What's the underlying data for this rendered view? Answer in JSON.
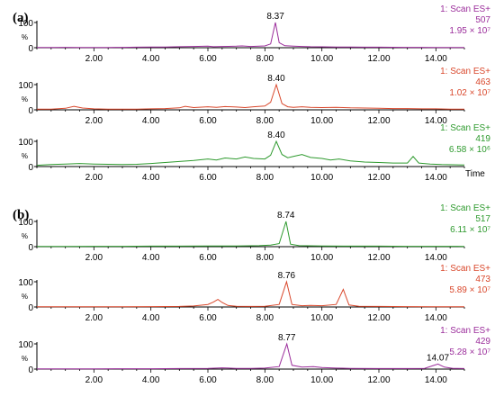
{
  "chart_data": [
    {
      "type": "line",
      "panel": "(a)",
      "xlim": [
        0,
        15
      ],
      "x_ticks": [
        "2.00",
        "4.00",
        "6.00",
        "8.00",
        "10.00",
        "12.00",
        "14.00"
      ],
      "x_label": "Time",
      "traces": [
        {
          "scan": "1: Scan ES+",
          "mass": "507",
          "intensity": "1.95 × 10⁷",
          "color": "#9b2d9b",
          "y_top": "100",
          "y_bottom": "0",
          "y_unit": "%",
          "peak_label": "8.37",
          "peak_rt": 8.37,
          "points": [
            [
              0,
              1
            ],
            [
              0.5,
              1
            ],
            [
              1,
              1.5
            ],
            [
              1.5,
              1
            ],
            [
              2,
              1.2
            ],
            [
              2.5,
              1
            ],
            [
              3,
              1.5
            ],
            [
              3.5,
              2
            ],
            [
              4,
              2.5
            ],
            [
              4.5,
              3
            ],
            [
              5,
              4
            ],
            [
              5.5,
              5
            ],
            [
              6,
              6
            ],
            [
              6.2,
              4
            ],
            [
              6.5,
              5
            ],
            [
              7,
              6
            ],
            [
              7.2,
              7
            ],
            [
              7.5,
              5
            ],
            [
              7.8,
              6
            ],
            [
              8.0,
              7
            ],
            [
              8.2,
              15
            ],
            [
              8.37,
              100
            ],
            [
              8.5,
              20
            ],
            [
              8.7,
              8
            ],
            [
              9,
              6
            ],
            [
              9.3,
              5
            ],
            [
              9.6,
              4
            ],
            [
              10,
              3.5
            ],
            [
              10.5,
              3
            ],
            [
              11,
              2.5
            ],
            [
              11.5,
              2
            ],
            [
              12,
              2
            ],
            [
              12.5,
              1.8
            ],
            [
              13,
              1.5
            ],
            [
              13.5,
              1.4
            ],
            [
              14,
              1.2
            ],
            [
              14.5,
              1
            ],
            [
              15,
              1
            ]
          ]
        },
        {
          "scan": "1: Scan ES+",
          "mass": "463",
          "intensity": "1.02 × 10⁷",
          "color": "#d9472b",
          "y_top": "100",
          "y_bottom": "0",
          "y_unit": "%",
          "peak_label": "8.40",
          "peak_rt": 8.4,
          "points": [
            [
              0,
              3
            ],
            [
              0.5,
              3
            ],
            [
              1,
              6
            ],
            [
              1.3,
              14
            ],
            [
              1.6,
              7
            ],
            [
              2,
              4
            ],
            [
              2.5,
              3
            ],
            [
              3,
              3
            ],
            [
              3.5,
              3
            ],
            [
              4,
              4
            ],
            [
              4.5,
              5
            ],
            [
              5,
              8
            ],
            [
              5.2,
              14
            ],
            [
              5.5,
              9
            ],
            [
              6,
              12
            ],
            [
              6.3,
              10
            ],
            [
              6.6,
              13
            ],
            [
              7,
              11
            ],
            [
              7.3,
              9
            ],
            [
              7.6,
              12
            ],
            [
              8,
              15
            ],
            [
              8.2,
              30
            ],
            [
              8.4,
              100
            ],
            [
              8.6,
              25
            ],
            [
              8.8,
              12
            ],
            [
              9,
              10
            ],
            [
              9.3,
              12
            ],
            [
              9.6,
              10
            ],
            [
              10,
              9
            ],
            [
              10.5,
              10
            ],
            [
              11,
              8
            ],
            [
              11.5,
              7
            ],
            [
              12,
              6
            ],
            [
              12.5,
              5
            ],
            [
              13,
              5
            ],
            [
              13.5,
              4
            ],
            [
              14,
              4
            ],
            [
              14.5,
              3
            ],
            [
              15,
              3
            ]
          ]
        },
        {
          "scan": "1: Scan ES+",
          "mass": "419",
          "intensity": "6.58 × 10⁶",
          "color": "#2e9a2e",
          "y_top": "100",
          "y_bottom": "0",
          "y_unit": "%",
          "peak_label": "8.40",
          "peak_rt": 8.4,
          "points": [
            [
              0,
              5
            ],
            [
              0.5,
              8
            ],
            [
              1,
              10
            ],
            [
              1.5,
              12
            ],
            [
              2,
              10
            ],
            [
              2.5,
              9
            ],
            [
              3,
              8
            ],
            [
              3.5,
              9
            ],
            [
              4,
              12
            ],
            [
              4.5,
              16
            ],
            [
              5,
              20
            ],
            [
              5.5,
              24
            ],
            [
              6,
              30
            ],
            [
              6.3,
              26
            ],
            [
              6.6,
              34
            ],
            [
              7,
              30
            ],
            [
              7.3,
              38
            ],
            [
              7.6,
              32
            ],
            [
              8,
              30
            ],
            [
              8.2,
              45
            ],
            [
              8.4,
              100
            ],
            [
              8.6,
              48
            ],
            [
              8.8,
              35
            ],
            [
              9,
              40
            ],
            [
              9.3,
              48
            ],
            [
              9.6,
              36
            ],
            [
              10,
              32
            ],
            [
              10.3,
              26
            ],
            [
              10.6,
              30
            ],
            [
              11,
              22
            ],
            [
              11.5,
              18
            ],
            [
              12,
              16
            ],
            [
              12.5,
              14
            ],
            [
              13,
              14
            ],
            [
              13.2,
              40
            ],
            [
              13.4,
              14
            ],
            [
              13.8,
              10
            ],
            [
              14.2,
              8
            ],
            [
              14.6,
              7
            ],
            [
              15,
              6
            ]
          ]
        }
      ]
    },
    {
      "type": "line",
      "panel": "(b)",
      "xlim": [
        0,
        15
      ],
      "x_ticks": [
        "2.00",
        "4.00",
        "6.00",
        "8.00",
        "10.00",
        "12.00",
        "14.00"
      ],
      "traces": [
        {
          "scan": "1: Scan ES+",
          "mass": "517",
          "intensity": "6.11 × 10⁷",
          "color": "#2e9a2e",
          "y_top": "100",
          "y_bottom": "0",
          "y_unit": "%",
          "peak_label": "8.74",
          "peak_rt": 8.74,
          "points": [
            [
              0,
              1
            ],
            [
              1,
              1
            ],
            [
              2,
              1.5
            ],
            [
              3,
              1.5
            ],
            [
              4,
              2
            ],
            [
              5,
              2
            ],
            [
              6,
              2.5
            ],
            [
              7,
              3
            ],
            [
              7.8,
              4
            ],
            [
              8.2,
              6
            ],
            [
              8.5,
              12
            ],
            [
              8.74,
              100
            ],
            [
              8.9,
              10
            ],
            [
              9.2,
              4
            ],
            [
              10,
              3
            ],
            [
              11,
              2
            ],
            [
              12,
              2
            ],
            [
              13,
              1.5
            ],
            [
              14,
              1.5
            ],
            [
              15,
              1
            ]
          ]
        },
        {
          "scan": "1: Scan ES+",
          "mass": "473",
          "intensity": "5.89 × 10⁷",
          "color": "#d9472b",
          "y_top": "100",
          "y_bottom": "0",
          "y_unit": "%",
          "peak_label": "8.76",
          "peak_rt": 8.76,
          "points": [
            [
              0,
              1
            ],
            [
              1,
              1
            ],
            [
              2,
              1
            ],
            [
              3,
              1
            ],
            [
              4,
              1.5
            ],
            [
              5,
              2
            ],
            [
              5.5,
              4
            ],
            [
              6,
              10
            ],
            [
              6.2,
              20
            ],
            [
              6.35,
              30
            ],
            [
              6.5,
              18
            ],
            [
              6.7,
              6
            ],
            [
              7,
              3
            ],
            [
              7.5,
              2
            ],
            [
              8,
              3
            ],
            [
              8.5,
              10
            ],
            [
              8.76,
              100
            ],
            [
              8.95,
              10
            ],
            [
              9.3,
              5
            ],
            [
              9.6,
              6
            ],
            [
              10,
              5
            ],
            [
              10.5,
              10
            ],
            [
              10.75,
              70
            ],
            [
              10.95,
              8
            ],
            [
              11.3,
              3
            ],
            [
              12,
              2
            ],
            [
              13,
              1.5
            ],
            [
              14,
              1
            ],
            [
              15,
              1
            ]
          ]
        },
        {
          "scan": "1: Scan ES+",
          "mass": "429",
          "intensity": "5.28 × 10⁷",
          "color": "#9b2d9b",
          "y_top": "100",
          "y_bottom": "0",
          "y_unit": "%",
          "peak_label": "8.77",
          "peak_rt": 8.77,
          "second_peak_label": "14.07",
          "second_peak_rt": 14.07,
          "points": [
            [
              0,
              1
            ],
            [
              1,
              1
            ],
            [
              2,
              1
            ],
            [
              3,
              1.5
            ],
            [
              4,
              1.5
            ],
            [
              5,
              2
            ],
            [
              6,
              3
            ],
            [
              6.5,
              5
            ],
            [
              7,
              3
            ],
            [
              7.5,
              3
            ],
            [
              8,
              4
            ],
            [
              8.5,
              10
            ],
            [
              8.77,
              100
            ],
            [
              8.95,
              15
            ],
            [
              9.3,
              8
            ],
            [
              9.7,
              10
            ],
            [
              10,
              6
            ],
            [
              10.5,
              4
            ],
            [
              11,
              3
            ],
            [
              12,
              2
            ],
            [
              13,
              2
            ],
            [
              13.6,
              3
            ],
            [
              13.9,
              14
            ],
            [
              14.07,
              20
            ],
            [
              14.3,
              8
            ],
            [
              14.6,
              3
            ],
            [
              15,
              2
            ]
          ]
        }
      ]
    }
  ]
}
